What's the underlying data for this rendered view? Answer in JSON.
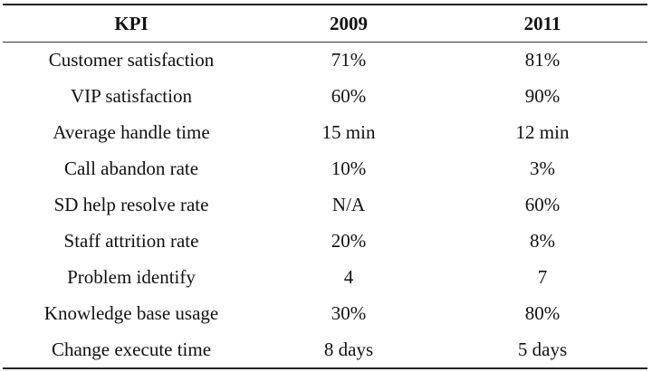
{
  "table": {
    "headers": [
      "KPI",
      "2009",
      "2011"
    ],
    "rows": [
      [
        "Customer satisfaction",
        "71%",
        "81%"
      ],
      [
        "VIP satisfaction",
        "60%",
        "90%"
      ],
      [
        "Average handle time",
        "15 min",
        "12 min"
      ],
      [
        "Call abandon rate",
        "10%",
        "3%"
      ],
      [
        "SD help resolve rate",
        "N/A",
        "60%"
      ],
      [
        "Staff attrition rate",
        "20%",
        "8%"
      ],
      [
        "Problem identify",
        "4",
        "7"
      ],
      [
        "Knowledge base usage",
        "30%",
        "80%"
      ],
      [
        "Change execute time",
        "8 days",
        "5 days"
      ]
    ]
  }
}
